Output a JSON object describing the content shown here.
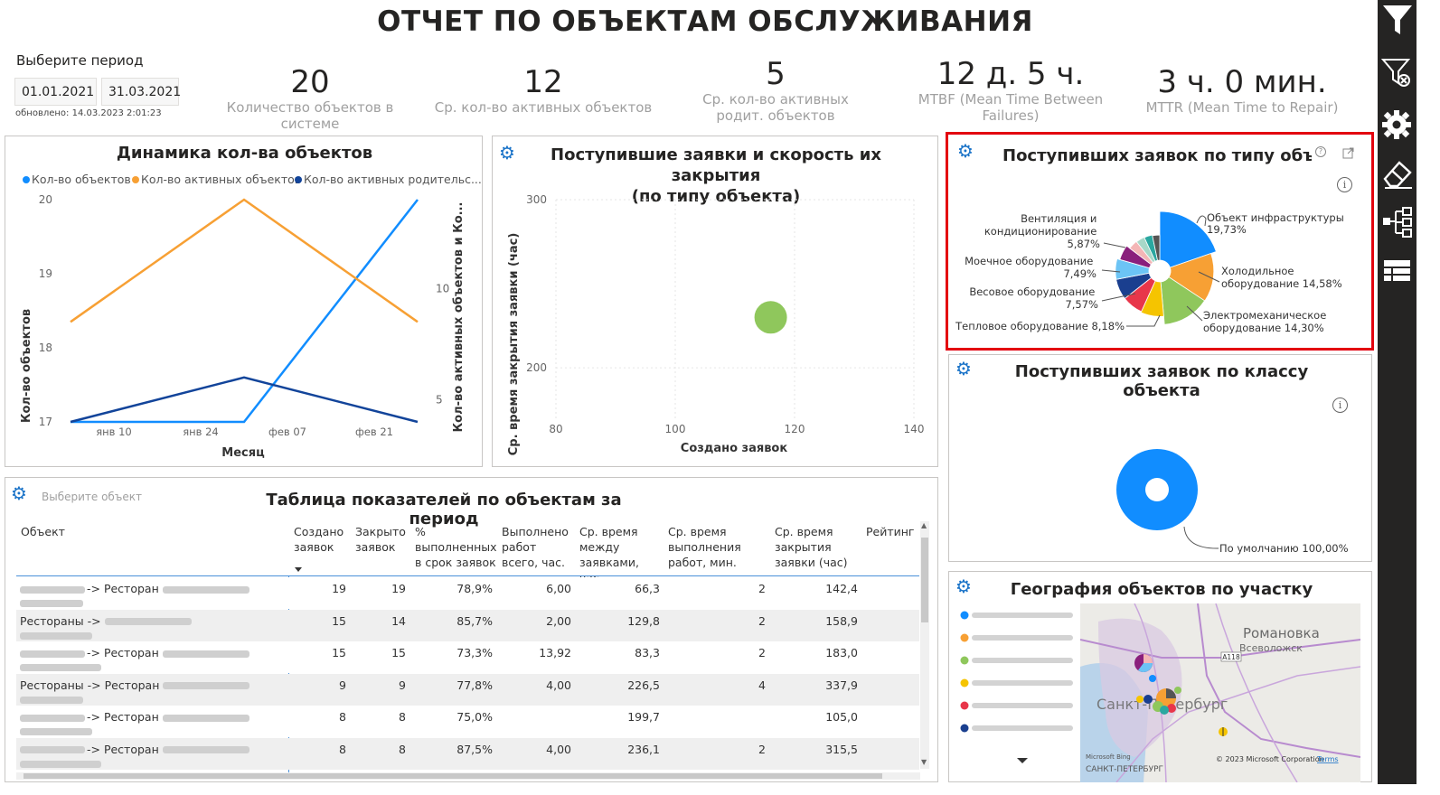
{
  "title": "ОТЧЕТ ПО ОБЪЕКТАМ ОБСЛУЖИВАНИЯ",
  "period": {
    "label": "Выберите период",
    "start": "01.01.2021",
    "end": "31.03.2021",
    "updated": "обновлено: 14.03.2023 2:01:23"
  },
  "kpis": [
    {
      "value": "20",
      "label": "Количество объектов в системе"
    },
    {
      "value": "12",
      "label": "Ср. кол-во активных объектов"
    },
    {
      "value": "5",
      "label": "Ср. кол-во активных родит. объектов"
    },
    {
      "value": "12 д. 5 ч.",
      "label": "MTBF (Mean Time Between Failures)"
    },
    {
      "value": "3 ч. 0 мин.",
      "label": "MTTR (Mean Time to Repair)"
    }
  ],
  "line_panel": {
    "title": "Динамика кол-ва объектов",
    "legend": [
      "Кол-во объектов",
      "Кол-во активных объектов",
      "Кол-во активных родительс..."
    ],
    "xlabel": "Месяц",
    "ylabel_left": "Кол-во объектов",
    "ylabel_right": "Кол-во активных объектов и Ко..."
  },
  "scatter_panel": {
    "title_line1": "Поступившие заявки и скорость их закрытия",
    "title_line2": "(по типу объекта)",
    "xlabel": "Создано заявок",
    "ylabel": "Ср. время закрытия заявки (час)"
  },
  "type_panel": {
    "title": "Поступивших заявок по типу объекта",
    "labels": [
      {
        "l1": "Объект инфраструктуры",
        "l2": "19,73%"
      },
      {
        "l1": "Холодильное",
        "l2": "оборудование 14,58%"
      },
      {
        "l1": "Электромеханическое",
        "l2": "оборудование 14,30%"
      },
      {
        "l1": "Тепловое оборудование 8,18%",
        "l2": ""
      },
      {
        "l1": "Весовое оборудование",
        "l2": "7,57%"
      },
      {
        "l1": "Моечное оборудование",
        "l2": "7,49%"
      },
      {
        "l1": "Вентиляция и",
        "l2": "кондиционирование",
        "l3": "5,87%"
      }
    ]
  },
  "class_panel": {
    "title": "Поступивших заявок по классу объекта",
    "label": "По умолчанию 100,00%"
  },
  "geo_panel": {
    "title": "География объектов по участку",
    "map_labels": {
      "city": "Санкт-Петербург",
      "town1": "Романовка",
      "town2": "Всеволожск",
      "road": "A118",
      "copyright": "© 2023 Microsoft Corporation",
      "terms": "Terms",
      "bing": "Microsoft Bing",
      "bottom": "САНКТ-ПЕТЕРБУРГ"
    },
    "legend_colors": [
      "#118dff",
      "#f7a034",
      "#8fc75c",
      "#f5c400",
      "#e8364a",
      "#1a3f8f"
    ]
  },
  "table_panel": {
    "title": "Таблица показателей по объектам за период",
    "slicer_placeholder": "Выберите объект",
    "headers": [
      "Объект",
      "Создано заявок",
      "Закрыто заявок",
      "% выполненных в срок заявок",
      "Выполнено работ всего, час.",
      "Ср. время между заявками, час.",
      "Ср. время выполнения работ, мин.",
      "Ср. время закрытия заявки (час)",
      "Рейтинг"
    ],
    "rows": [
      {
        "obj": "-> Ресторан",
        "created": "19",
        "closed": "19",
        "pct": "78,9%",
        "work": "6,00",
        "between": "66,3",
        "exec": "2",
        "close": "142,4"
      },
      {
        "obj": "Рестораны ->",
        "created": "15",
        "closed": "14",
        "pct": "85,7%",
        "work": "2,00",
        "between": "129,8",
        "exec": "2",
        "close": "158,9"
      },
      {
        "obj": "-> Ресторан",
        "created": "15",
        "closed": "15",
        "pct": "73,3%",
        "work": "13,92",
        "between": "83,3",
        "exec": "2",
        "close": "183,0"
      },
      {
        "obj": "Рестораны -> Ресторан",
        "created": "9",
        "closed": "9",
        "pct": "77,8%",
        "work": "4,00",
        "between": "226,5",
        "exec": "4",
        "close": "337,9"
      },
      {
        "obj": "-> Ресторан",
        "created": "8",
        "closed": "8",
        "pct": "75,0%",
        "work": "",
        "between": "199,7",
        "exec": "",
        "close": "105,0"
      },
      {
        "obj": "-> Ресторан",
        "created": "8",
        "closed": "8",
        "pct": "87,5%",
        "work": "4,00",
        "between": "236,1",
        "exec": "2",
        "close": "315,5"
      }
    ]
  },
  "chart_data": [
    {
      "type": "line",
      "title": "Динамика кол-ва объектов",
      "xlabel": "Месяц",
      "x_ticks": [
        "янв 10",
        "янв 24",
        "фев 07",
        "фев 21"
      ],
      "x": [
        "янв 03",
        "янв 31",
        "фев 28"
      ],
      "series": [
        {
          "name": "Кол-во объектов",
          "axis": "left",
          "color": "#118dff",
          "x": [
            "янв 03",
            "янв 17",
            "янв 31",
            "фев 28"
          ],
          "values": [
            17,
            17,
            17,
            20
          ]
        },
        {
          "name": "Кол-во активных объектов",
          "axis": "right",
          "color": "#f7a034",
          "values": [
            8.5,
            14,
            8.5
          ]
        },
        {
          "name": "Кол-во активных родительс...",
          "axis": "right",
          "color": "#12449a",
          "values": [
            4,
            6,
            4
          ]
        }
      ],
      "ylim_left": [
        17,
        20
      ],
      "yticks_left": [
        17,
        18,
        19,
        20
      ],
      "ylim_right": [
        4,
        14
      ],
      "yticks_right": [
        5,
        10
      ],
      "ylabel": "Кол-во объектов",
      "ylabel_right": "Кол-во активных объектов и Ко...",
      "legend": "top"
    },
    {
      "type": "scatter",
      "title": "Поступившие заявки и скорость их закрытия (по типу объекта)",
      "xlabel": "Создано заявок",
      "ylabel": "Ср. время закрытия заявки (час)",
      "xlim": [
        80,
        140
      ],
      "ylim": [
        170,
        300
      ],
      "xticks": [
        80,
        100,
        120,
        140
      ],
      "yticks": [
        200,
        300
      ],
      "points": [
        {
          "x": 116,
          "y": 230,
          "color": "#8fc75c"
        }
      ]
    },
    {
      "type": "pie",
      "title": "Поступивших заявок по типу объекта",
      "slices": [
        {
          "label": "Объект инфраструктуры",
          "value": 19.73,
          "color": "#118dff"
        },
        {
          "label": "Холодильное оборудование",
          "value": 14.58,
          "color": "#f7a034"
        },
        {
          "label": "Электромеханическое оборудование",
          "value": 14.3,
          "color": "#8fc75c"
        },
        {
          "label": "Тепловое оборудование",
          "value": 8.18,
          "color": "#f5c400"
        },
        {
          "label": "",
          "value": 7.6,
          "color": "#e8364a"
        },
        {
          "label": "Весовое оборудование",
          "value": 7.57,
          "color": "#1a3f8f"
        },
        {
          "label": "Моечное оборудование",
          "value": 7.49,
          "color": "#6cc4f5"
        },
        {
          "label": "Вентиляция и кондиционирование",
          "value": 5.87,
          "color": "#8a1f7c"
        },
        {
          "label": "",
          "value": 4.0,
          "color": "#f4b6b6"
        },
        {
          "label": "",
          "value": 3.8,
          "color": "#a8d8c8"
        },
        {
          "label": "",
          "value": 3.6,
          "color": "#2aa7a0"
        },
        {
          "label": "",
          "value": 3.28,
          "color": "#555555"
        }
      ]
    },
    {
      "type": "pie",
      "title": "Поступивших заявок по классу объекта",
      "slices": [
        {
          "label": "По умолчанию",
          "value": 100.0,
          "color": "#118dff"
        }
      ]
    }
  ]
}
